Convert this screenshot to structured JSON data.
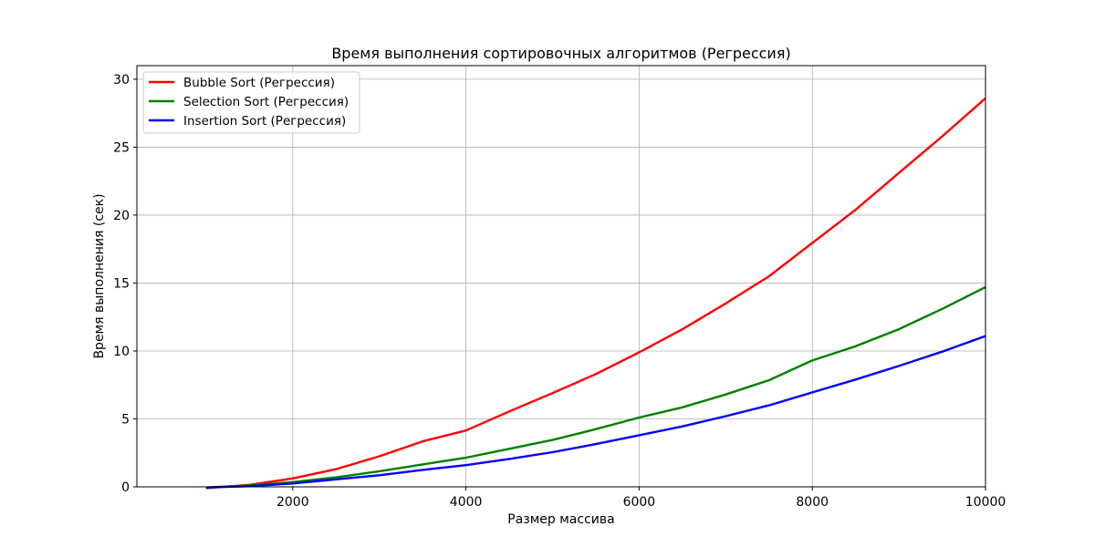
{
  "chart_data": {
    "type": "line",
    "title": "Время выполнения сортировочных алгоритмов (Регрессия)",
    "xlabel": "Размер массива",
    "ylabel": "Время выполнения (сек)",
    "xlim": [
      200,
      10000
    ],
    "ylim": [
      0,
      31
    ],
    "xticks": [
      2000,
      4000,
      6000,
      8000,
      10000
    ],
    "yticks": [
      0,
      5,
      10,
      15,
      20,
      25,
      30
    ],
    "grid": true,
    "legend_position": "upper-left",
    "x": [
      1000,
      1500,
      2000,
      2500,
      3000,
      3500,
      4000,
      4500,
      5000,
      5500,
      6000,
      6500,
      7000,
      7500,
      8000,
      8500,
      9000,
      9500,
      10000
    ],
    "series": [
      {
        "name": "Bubble Sort (Регрессия)",
        "color": "#ff0000",
        "values": [
          -0.1,
          0.15,
          0.62,
          1.3,
          2.25,
          3.35,
          4.15,
          5.55,
          6.9,
          8.3,
          9.9,
          11.6,
          13.5,
          15.5,
          17.95,
          20.4,
          23.1,
          25.8,
          28.6
        ]
      },
      {
        "name": "Selection Sort (Регрессия)",
        "color": "#008000",
        "values": [
          -0.05,
          0.1,
          0.35,
          0.7,
          1.15,
          1.65,
          2.15,
          2.8,
          3.45,
          4.25,
          5.1,
          5.85,
          6.8,
          7.85,
          9.3,
          10.35,
          11.6,
          13.1,
          14.7
        ]
      },
      {
        "name": "Insertion Sort (Регрессия)",
        "color": "#0000ff",
        "values": [
          -0.05,
          0.05,
          0.25,
          0.55,
          0.85,
          1.25,
          1.6,
          2.05,
          2.55,
          3.15,
          3.8,
          4.45,
          5.2,
          6.0,
          6.95,
          7.9,
          8.9,
          9.95,
          11.1
        ]
      }
    ]
  }
}
